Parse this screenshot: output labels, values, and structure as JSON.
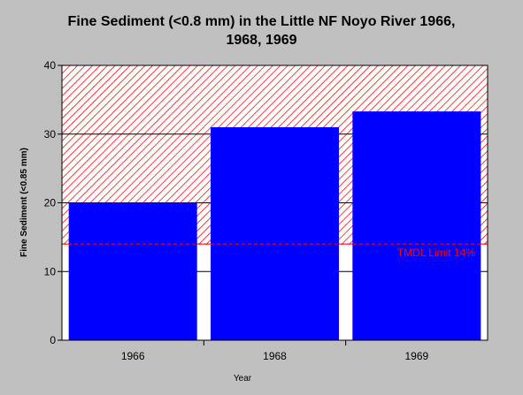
{
  "chart_data": {
    "type": "bar",
    "title_line1": "Fine Sediment (<0.8 mm) in the Little NF Noyo River 1966,",
    "title_line2": "1968, 1969",
    "xlabel": "Year",
    "ylabel": "Fine Sediment (<0.85 mm)",
    "categories": [
      "1966",
      "1968",
      "1969"
    ],
    "values": [
      20,
      31,
      33.3
    ],
    "ylim": [
      0,
      40
    ],
    "yticks": [
      "0",
      "10",
      "20",
      "30",
      "40"
    ],
    "grid": true,
    "bar_color": "#0000ff",
    "threshold": {
      "value": 14,
      "label": "TMDL Limit 14%",
      "color": "#ff0000",
      "hatched_region": [
        14,
        40
      ]
    }
  }
}
